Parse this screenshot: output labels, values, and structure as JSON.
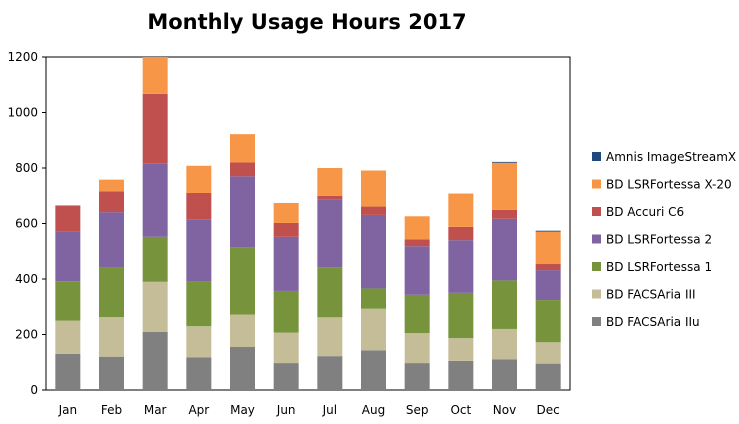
{
  "chart_data": {
    "type": "bar",
    "stacked": true,
    "title": "Monthly Usage Hours 2017",
    "xlabel": "",
    "ylabel": "",
    "categories": [
      "Jan",
      "Feb",
      "Mar",
      "Apr",
      "May",
      "Jun",
      "Jul",
      "Aug",
      "Sep",
      "Oct",
      "Nov",
      "Dec"
    ],
    "ylim": [
      0,
      1200
    ],
    "yticks": [
      "0",
      "200",
      "400",
      "600",
      "800",
      "1000",
      "1200"
    ],
    "grid": false,
    "legend_position": "right",
    "series": [
      {
        "name": "BD FACSAria IIu",
        "color": "#808080",
        "values": [
          130,
          120,
          210,
          118,
          155,
          97,
          122,
          143,
          97,
          105,
          110,
          95
        ]
      },
      {
        "name": "BD FACSAria III",
        "color": "#c4bd97",
        "values": [
          120,
          143,
          180,
          112,
          117,
          110,
          140,
          150,
          108,
          82,
          110,
          77
        ]
      },
      {
        "name": "BD LSRFortessa 1",
        "color": "#77933c",
        "values": [
          142,
          178,
          162,
          160,
          243,
          150,
          180,
          73,
          138,
          163,
          175,
          152
        ]
      },
      {
        "name": "BD LSRFortessa 2",
        "color": "#8064a2",
        "values": [
          178,
          200,
          265,
          225,
          255,
          195,
          245,
          265,
          175,
          190,
          222,
          108
        ]
      },
      {
        "name": "BD Accuri C6",
        "color": "#c0504d",
        "values": [
          95,
          75,
          250,
          95,
          50,
          50,
          13,
          30,
          25,
          48,
          32,
          22
        ]
      },
      {
        "name": "BD LSRFortessa X-20",
        "color": "#f79646",
        "values": [
          0,
          42,
          133,
          98,
          102,
          72,
          100,
          130,
          83,
          120,
          170,
          117
        ]
      },
      {
        "name": "Amnis ImageStreamX",
        "color": "#1f497d",
        "values": [
          0,
          0,
          0,
          0,
          0,
          0,
          0,
          0,
          0,
          0,
          3,
          3
        ]
      }
    ]
  }
}
